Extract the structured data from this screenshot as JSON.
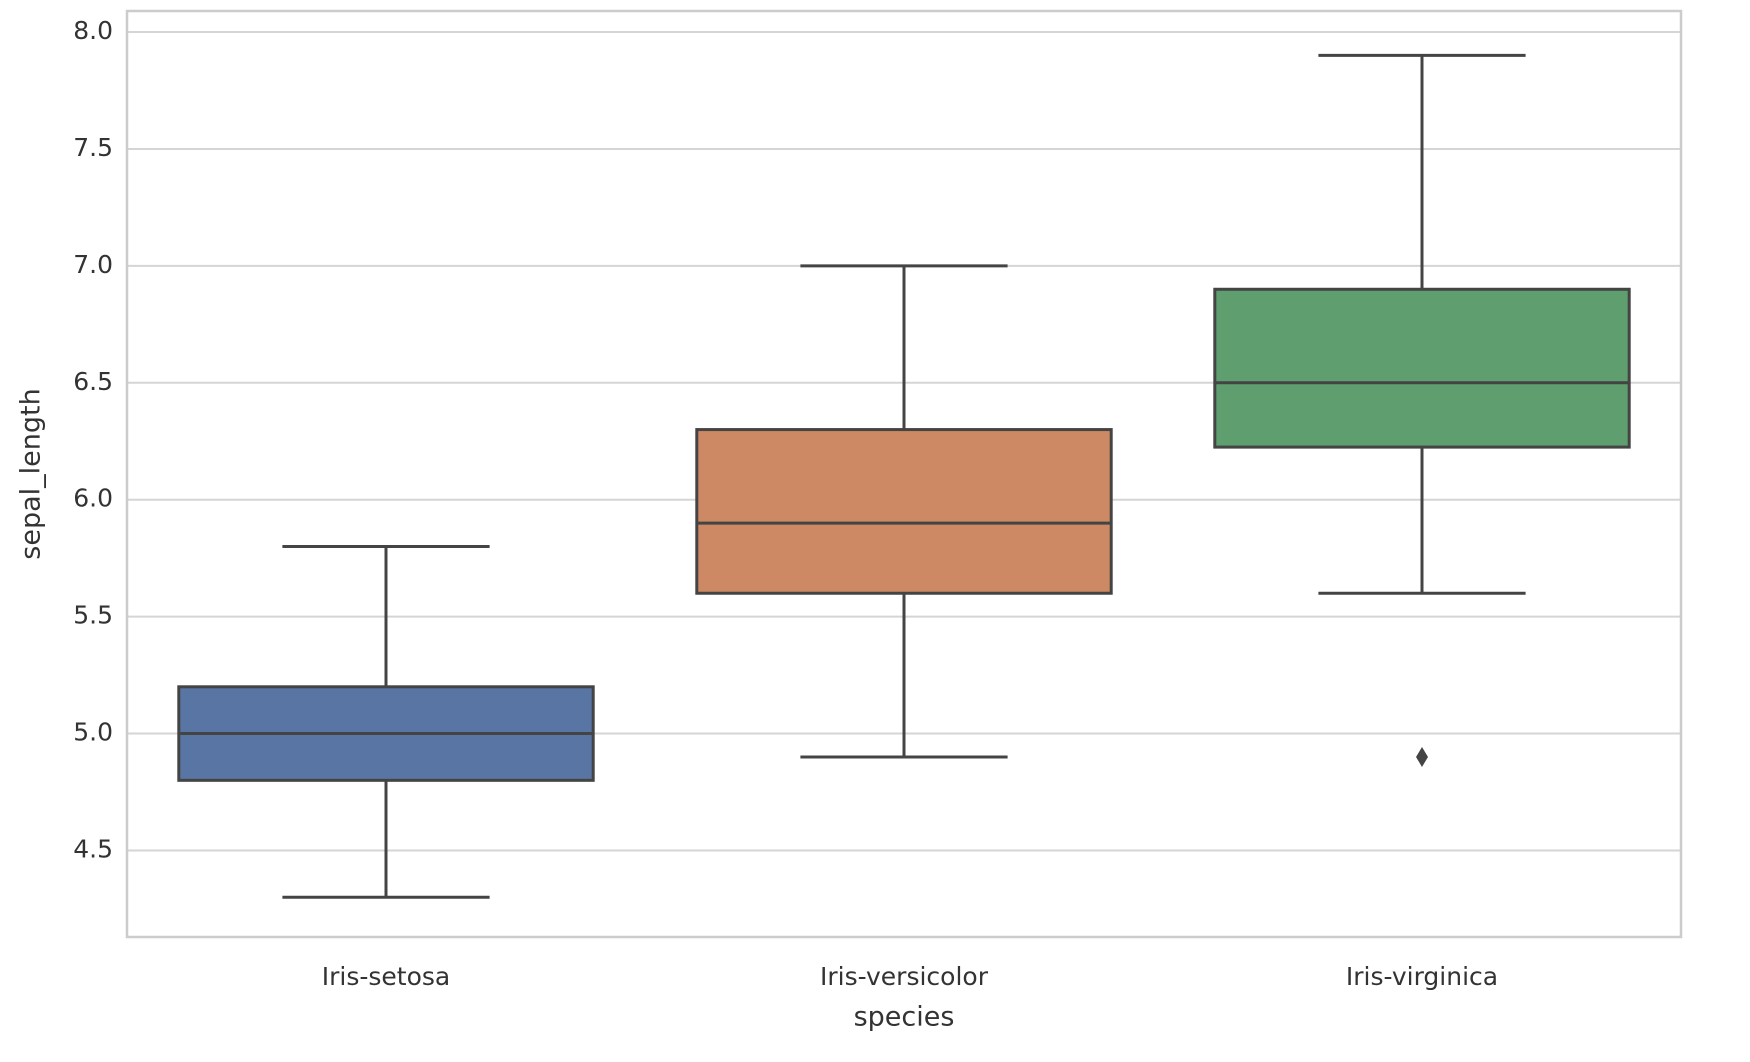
{
  "chart_data": {
    "type": "box",
    "x_label": "species",
    "y_label": "sepal_length",
    "categories": [
      "Iris-setosa",
      "Iris-versicolor",
      "Iris-virginica"
    ],
    "colors": [
      "#5975a4",
      "#cc8963",
      "#5f9e6e"
    ],
    "boxes": [
      {
        "low": 4.3,
        "q1": 4.8,
        "median": 5.0,
        "q3": 5.2,
        "high": 5.8
      },
      {
        "low": 4.9,
        "q1": 5.6,
        "median": 5.9,
        "q3": 6.3,
        "high": 7.0
      },
      {
        "low": 5.6,
        "q1": 6.225,
        "median": 6.5,
        "q3": 6.9,
        "high": 7.9,
        "outliers": [
          4.9
        ]
      }
    ],
    "ylim": [
      4.13,
      8.09
    ],
    "yticks": [
      {
        "value": 4.5,
        "label": "4.5"
      },
      {
        "value": 5.0,
        "label": "5.0"
      },
      {
        "value": 5.5,
        "label": "5.5"
      },
      {
        "value": 6.0,
        "label": "6.0"
      },
      {
        "value": 6.5,
        "label": "6.5"
      },
      {
        "value": 7.0,
        "label": "7.0"
      },
      {
        "value": 7.5,
        "label": "7.5"
      },
      {
        "value": 8.0,
        "label": "8.0"
      }
    ],
    "grid": true
  }
}
